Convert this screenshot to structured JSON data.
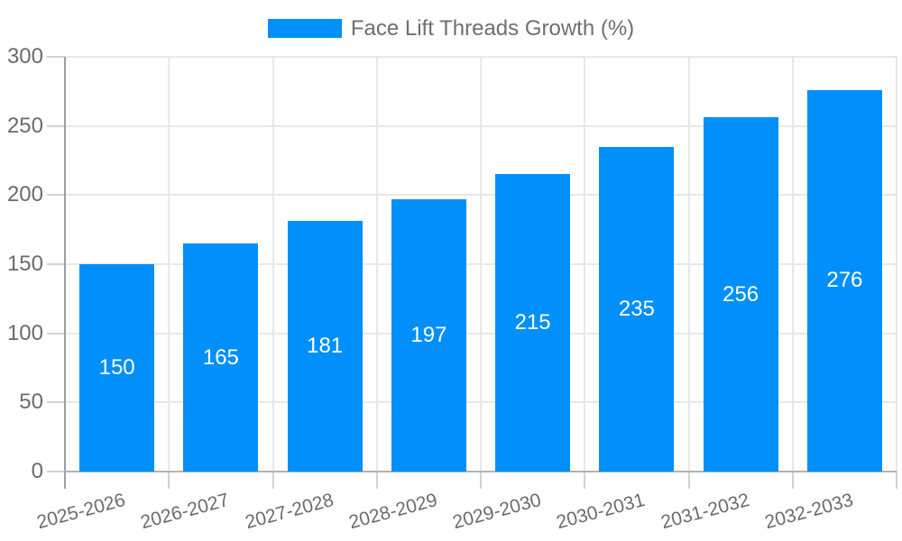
{
  "legend": {
    "label": "Face Lift Threads Growth (%)"
  },
  "chart_data": {
    "type": "bar",
    "title": "Face Lift Threads Growth (%)",
    "categories": [
      "2025-2026",
      "2026-2027",
      "2027-2028",
      "2028-2029",
      "2029-2030",
      "2030-2031",
      "2031-2032",
      "2032-2033"
    ],
    "values": [
      150,
      165,
      181,
      197,
      215,
      235,
      256,
      276
    ],
    "xlabel": "",
    "ylabel": "",
    "ylim": [
      0,
      300
    ],
    "yticks": [
      0,
      50,
      100,
      150,
      200,
      250,
      300
    ],
    "grid": true,
    "legend_position": "top",
    "bar_color": "#008FFB",
    "value_label_color": "#ffffff",
    "axis_text_color": "#6b6b6b"
  }
}
